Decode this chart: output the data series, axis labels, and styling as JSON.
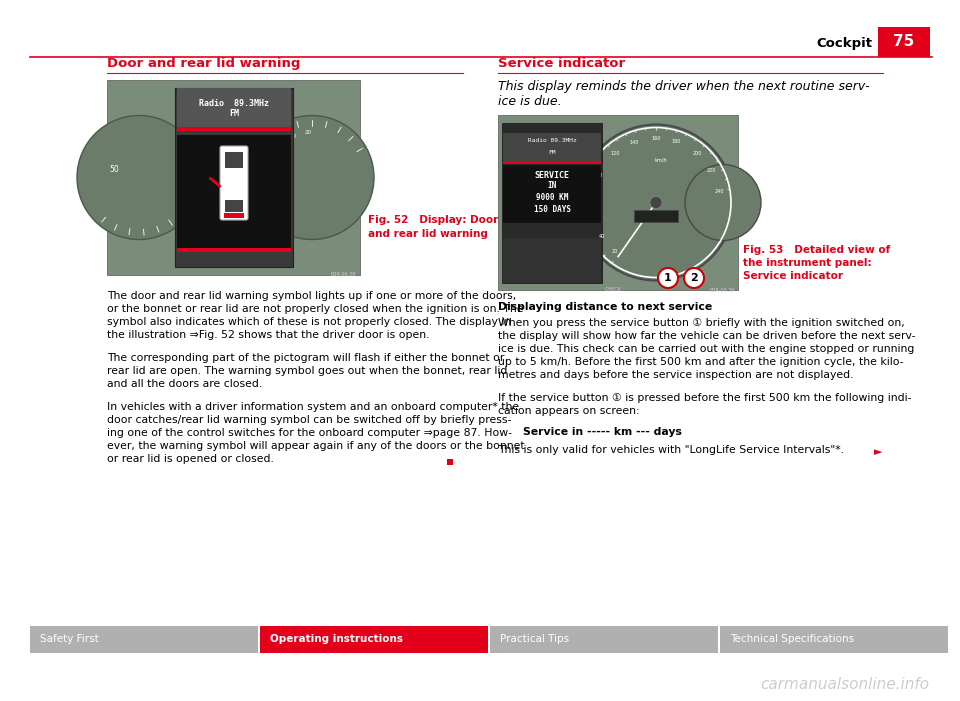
{
  "page_title": "Cockpit",
  "page_number": "75",
  "header_line_color": "#e2001a",
  "header_bg_color": "#e2001a",
  "header_text_color": "#ffffff",
  "left_section_title": "Door and rear lid warning",
  "left_section_title_color": "#e2001a",
  "fig52_caption_line1": "Fig. 52   Display: Door",
  "fig52_caption_line2": "and rear lid warning",
  "fig52_caption_color": "#e2001a",
  "right_section_title": "Service indicator",
  "right_section_title_color": "#e2001a",
  "right_italic_line1": "This display reminds the driver when the next routine serv-",
  "right_italic_line2": "ice is due.",
  "fig53_caption_line1": "Fig. 53   Detailed view of",
  "fig53_caption_line2": "the instrument panel:",
  "fig53_caption_line3": "Service indicator",
  "fig53_caption_color": "#e2001a",
  "right_bold_subtitle": "Displaying distance to next service",
  "footer_tabs": [
    "Safety First",
    "Operating instructions",
    "Practical Tips",
    "Technical Specifications"
  ],
  "footer_active_tab": "Operating instructions",
  "footer_active_color": "#e2001a",
  "footer_inactive_color": "#b0b0b0",
  "footer_text_color_active": "#ffffff",
  "footer_text_color_inactive": "#ffffff",
  "bg_color": "#ffffff",
  "divider_color": "#e2001a",
  "small_red_square_color": "#e2001a",
  "right_arrow_color": "#e2001a",
  "gauge_outer_color": "#8a9a8a",
  "gauge_inner_color": "#6a7a6a",
  "display_bg": "#111111",
  "display_header_bg": "#333333"
}
